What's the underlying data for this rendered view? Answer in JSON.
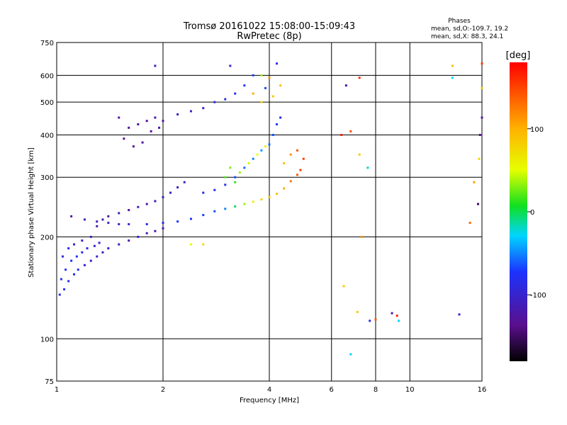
{
  "chart_data": {
    "type": "scatter",
    "title": "Tromsø 20161022 15:08:00-15:09:43",
    "subtitle": "RwPretec (8p)",
    "xlabel": "Frequency [MHz]",
    "ylabel": "Stationary phase Virtual Height [km]",
    "x_scale": "log",
    "y_scale": "log",
    "xlim": [
      1,
      16
    ],
    "ylim": [
      75,
      750
    ],
    "x_ticks": [
      1,
      2,
      4,
      6,
      8,
      10,
      16
    ],
    "y_ticks": [
      75,
      100,
      200,
      300,
      400,
      500,
      600,
      750
    ],
    "x_gridlines": [
      2,
      4,
      6,
      8,
      10
    ],
    "y_gridlines": [
      100,
      200,
      300,
      400,
      500,
      600
    ],
    "grid": true,
    "stats": {
      "heading": "Phases",
      "line_o": "mean, sd,O:-109.7, 19.2",
      "line_x": "mean, sd,X: 88.3, 24.1"
    },
    "colorbar": {
      "label": "[deg]",
      "min": -180,
      "max": 180,
      "ticks": [
        -100,
        0,
        100
      ],
      "colormap": "rainbow (black-purple-blue-cyan-green-yellow-orange-red)",
      "position": "right"
    },
    "series": [
      {
        "points": [
          [
            1.02,
            135,
            -110
          ],
          [
            1.05,
            140,
            -105
          ],
          [
            1.08,
            148,
            -110
          ],
          [
            1.12,
            155,
            -105
          ],
          [
            1.15,
            160,
            -110
          ],
          [
            1.2,
            165,
            -120
          ],
          [
            1.25,
            170,
            -125
          ],
          [
            1.3,
            175,
            -120
          ],
          [
            1.35,
            180,
            -130
          ],
          [
            1.4,
            185,
            -125
          ],
          [
            1.5,
            190,
            -130
          ],
          [
            1.6,
            195,
            -135
          ],
          [
            1.7,
            200,
            -130
          ],
          [
            1.8,
            205,
            -135
          ],
          [
            1.9,
            208,
            -140
          ],
          [
            2.0,
            212,
            -135
          ],
          [
            1.03,
            150,
            -110
          ],
          [
            1.06,
            160,
            -105
          ],
          [
            1.1,
            170,
            -100
          ],
          [
            1.14,
            175,
            -105
          ],
          [
            1.18,
            180,
            -110
          ],
          [
            1.22,
            185,
            -115
          ],
          [
            1.28,
            188,
            -120
          ],
          [
            1.32,
            192,
            -125
          ],
          [
            1.04,
            175,
            -115
          ],
          [
            1.08,
            185,
            -110
          ],
          [
            1.12,
            190,
            -120
          ],
          [
            1.18,
            195,
            -125
          ],
          [
            1.25,
            200,
            -130
          ],
          [
            1.3,
            215,
            -135
          ],
          [
            1.35,
            225,
            -135
          ],
          [
            1.4,
            230,
            -140
          ],
          [
            1.5,
            235,
            -135
          ],
          [
            1.6,
            240,
            -140
          ],
          [
            1.7,
            245,
            -135
          ],
          [
            1.8,
            250,
            -140
          ],
          [
            1.9,
            255,
            -135
          ],
          [
            2.0,
            262,
            -130
          ],
          [
            2.1,
            270,
            -130
          ],
          [
            2.2,
            280,
            -125
          ],
          [
            2.3,
            290,
            -125
          ]
        ]
      },
      {
        "points": [
          [
            1.1,
            230,
            -140
          ],
          [
            1.2,
            225,
            -135
          ],
          [
            1.3,
            222,
            -130
          ],
          [
            1.4,
            220,
            -125
          ],
          [
            1.5,
            218,
            -120
          ],
          [
            1.6,
            218,
            -115
          ],
          [
            1.8,
            218,
            -110
          ],
          [
            2.0,
            220,
            -110
          ],
          [
            2.2,
            222,
            -105
          ],
          [
            2.4,
            226,
            -100
          ],
          [
            2.6,
            232,
            -95
          ],
          [
            2.8,
            238,
            -90
          ],
          [
            3.0,
            242,
            -70
          ],
          [
            3.2,
            246,
            -10
          ],
          [
            3.4,
            250,
            40
          ],
          [
            3.6,
            254,
            70
          ],
          [
            3.8,
            258,
            90
          ],
          [
            4.0,
            262,
            100
          ],
          [
            4.2,
            268,
            110
          ],
          [
            4.4,
            278,
            120
          ],
          [
            4.6,
            292,
            140
          ],
          [
            4.8,
            305,
            150
          ],
          [
            4.9,
            315,
            160
          ]
        ]
      },
      {
        "points": [
          [
            2.6,
            270,
            -110
          ],
          [
            2.8,
            275,
            -105
          ],
          [
            3.0,
            285,
            -100
          ],
          [
            3.2,
            300,
            -90
          ],
          [
            3.4,
            320,
            -80
          ],
          [
            3.6,
            340,
            -70
          ],
          [
            3.8,
            360,
            -60
          ],
          [
            4.0,
            375,
            -80
          ],
          [
            4.1,
            400,
            -90
          ],
          [
            4.2,
            430,
            -100
          ],
          [
            4.3,
            450,
            -110
          ],
          [
            3.0,
            300,
            20
          ],
          [
            3.1,
            320,
            30
          ],
          [
            3.2,
            290,
            10
          ],
          [
            3.3,
            310,
            40
          ],
          [
            3.5,
            330,
            50
          ],
          [
            3.7,
            350,
            60
          ],
          [
            3.9,
            370,
            70
          ],
          [
            4.4,
            330,
            110
          ],
          [
            4.6,
            350,
            130
          ],
          [
            4.8,
            360,
            150
          ],
          [
            5.0,
            340,
            160
          ]
        ]
      },
      {
        "points": [
          [
            1.5,
            450,
            -140
          ],
          [
            1.6,
            420,
            -145
          ],
          [
            1.7,
            430,
            -140
          ],
          [
            1.8,
            440,
            -145
          ],
          [
            1.9,
            450,
            -135
          ],
          [
            2.0,
            440,
            -140
          ],
          [
            2.2,
            460,
            -130
          ],
          [
            2.4,
            470,
            -125
          ],
          [
            2.6,
            480,
            -120
          ],
          [
            2.8,
            500,
            -115
          ],
          [
            3.0,
            510,
            -110
          ],
          [
            3.2,
            530,
            -105
          ],
          [
            3.4,
            560,
            -100
          ],
          [
            3.6,
            600,
            -95
          ],
          [
            3.9,
            550,
            -90
          ],
          [
            4.1,
            520,
            100
          ],
          [
            4.3,
            560,
            110
          ],
          [
            3.6,
            530,
            120
          ],
          [
            3.8,
            500,
            90
          ],
          [
            1.55,
            390,
            -150
          ],
          [
            1.65,
            370,
            -145
          ],
          [
            1.75,
            380,
            -140
          ],
          [
            1.85,
            410,
            -145
          ],
          [
            1.95,
            420,
            -140
          ]
        ]
      },
      {
        "points": [
          [
            1.9,
            640,
            -130
          ],
          [
            3.1,
            640,
            -120
          ],
          [
            3.8,
            600,
            40
          ],
          [
            4.0,
            590,
            130
          ],
          [
            4.2,
            650,
            -110
          ],
          [
            6.6,
            560,
            -140
          ],
          [
            7.2,
            590,
            165
          ],
          [
            6.8,
            410,
            155
          ],
          [
            7.2,
            350,
            100
          ],
          [
            7.6,
            320,
            -30
          ],
          [
            6.4,
            400,
            170
          ],
          [
            15.6,
            250,
            -160
          ],
          [
            14.8,
            220,
            145
          ],
          [
            15.2,
            290,
            125
          ],
          [
            13.2,
            640,
            110
          ],
          [
            13.2,
            590,
            -40
          ],
          [
            16.0,
            650,
            160
          ],
          [
            16.0,
            550,
            100
          ],
          [
            16.0,
            450,
            -140
          ],
          [
            15.8,
            400,
            -150
          ],
          [
            6.5,
            143,
            100
          ],
          [
            7.1,
            120,
            100
          ],
          [
            7.7,
            113,
            -110
          ],
          [
            8.0,
            114,
            150
          ],
          [
            8.9,
            119,
            -140
          ],
          [
            9.2,
            117,
            170
          ],
          [
            9.3,
            113,
            -40
          ],
          [
            13.8,
            118,
            -120
          ],
          [
            7.3,
            200,
            130
          ],
          [
            2.4,
            190,
            60
          ],
          [
            2.6,
            190,
            90
          ],
          [
            6.8,
            90,
            -40
          ],
          [
            15.7,
            340,
            90
          ]
        ]
      }
    ]
  }
}
